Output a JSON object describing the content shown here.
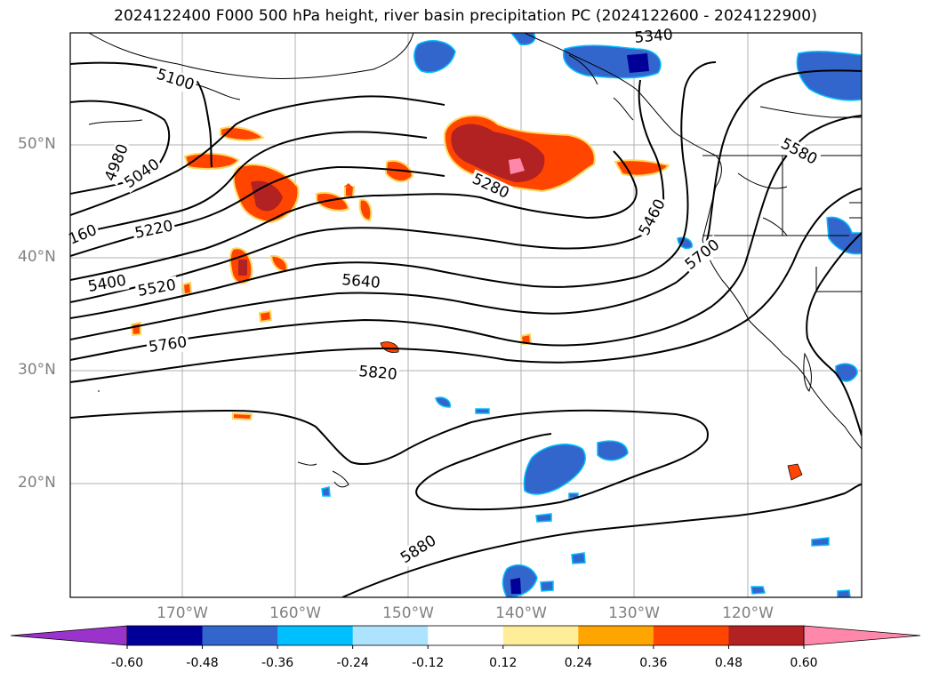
{
  "title": "2024122400 F000 500 hPa height, river basin precipitation PC (2024122600 - 2024122900)",
  "map": {
    "lat_labels": [
      "50°N",
      "40°N",
      "30°N",
      "20°N"
    ],
    "lon_labels": [
      "170°W",
      "160°W",
      "150°W",
      "140°W",
      "130°W",
      "120°W"
    ],
    "contour_labels": [
      "5100",
      "5340",
      "4980",
      "5040",
      "160",
      "5220",
      "5400",
      "5520",
      "5280",
      "5640",
      "5760",
      "5820",
      "5460",
      "5580",
      "5700",
      "5880"
    ],
    "colors": {
      "frame": "#000000",
      "grid": "#b0b0b0",
      "contour": "#000000",
      "coast": "#000000"
    }
  },
  "colorbar": {
    "levels": [
      "-0.60",
      "-0.48",
      "-0.36",
      "-0.24",
      "-0.12",
      "0.12",
      "0.24",
      "0.36",
      "0.48",
      "0.60"
    ],
    "colors": [
      "#9933cc",
      "#000099",
      "#3366cc",
      "#00bfff",
      "#aee3ff",
      "#ffffff",
      "#ffee99",
      "#ffa500",
      "#ff4500",
      "#b22222",
      "#ff88aa"
    ]
  }
}
